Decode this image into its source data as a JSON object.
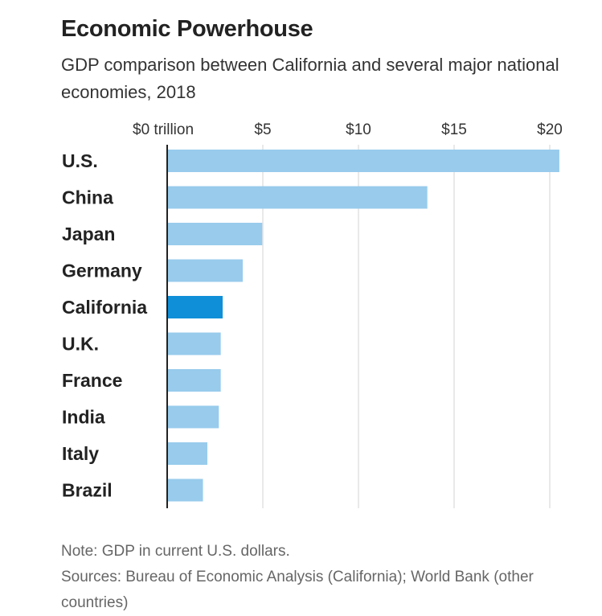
{
  "chart_data": {
    "type": "bar",
    "orientation": "horizontal",
    "title": "Economic Powerhouse",
    "subtitle": "GDP comparison between California and several major national economies, 2018",
    "categories": [
      "U.S.",
      "China",
      "Japan",
      "Germany",
      "California",
      "U.K.",
      "France",
      "India",
      "Italy",
      "Brazil"
    ],
    "values": [
      20.5,
      13.6,
      4.97,
      3.95,
      2.9,
      2.8,
      2.8,
      2.7,
      2.1,
      1.87
    ],
    "highlight": "California",
    "colors": {
      "bar": "#98cbec",
      "highlight": "#0f8fd8",
      "grid": "#e2e2e2",
      "axis": "#222222"
    },
    "xlim": [
      0,
      21
    ],
    "xticks": [
      0,
      5,
      10,
      15,
      20
    ],
    "xtick_labels": [
      "$0 trillion",
      "$5",
      "$10",
      "$15",
      "$20"
    ],
    "grid": true,
    "xaxis_position": "top",
    "note": "Note: GDP in current U.S. dollars.",
    "sources": "Sources: Bureau of Economic Analysis (California); World Bank (other countries)"
  }
}
